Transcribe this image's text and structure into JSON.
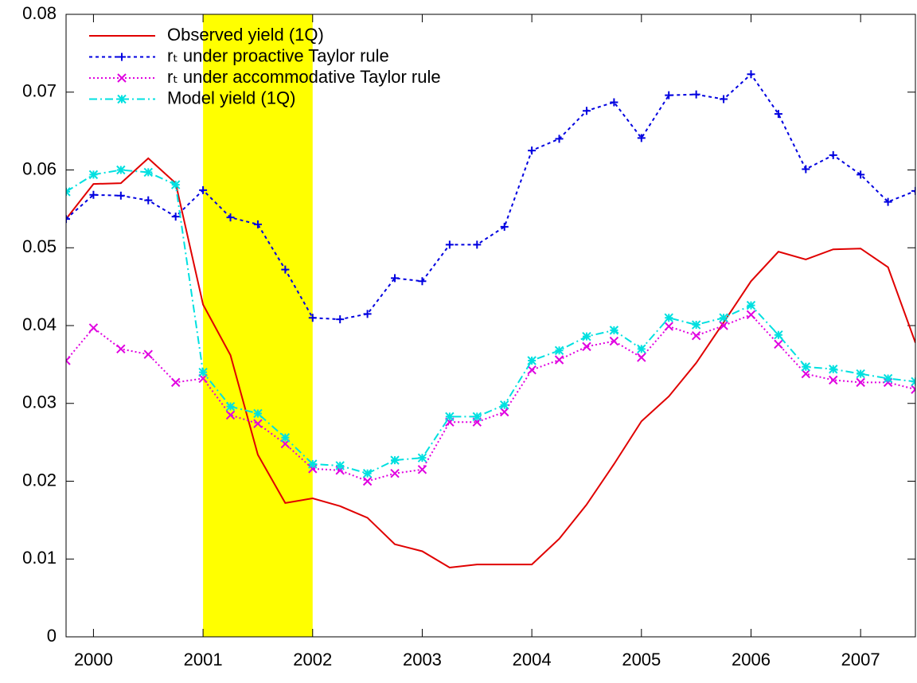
{
  "chart_data": {
    "type": "line",
    "x": [
      1999.75,
      2000,
      2000.25,
      2000.5,
      2000.75,
      2001,
      2001.25,
      2001.5,
      2001.75,
      2002,
      2002.25,
      2002.5,
      2002.75,
      2003,
      2003.25,
      2003.5,
      2003.75,
      2004,
      2004.25,
      2004.5,
      2004.75,
      2005,
      2005.25,
      2005.5,
      2005.75,
      2006,
      2006.25,
      2006.5,
      2006.75,
      2007,
      2007.25,
      2007.5
    ],
    "series": [
      {
        "name": "Observed yield (1Q)",
        "color": "#e00000",
        "dash": "none",
        "marker": "none",
        "values": [
          0.0537,
          0.0582,
          0.0583,
          0.0615,
          0.0583,
          0.0427,
          0.0362,
          0.0234,
          0.0172,
          0.0178,
          0.0168,
          0.0153,
          0.0119,
          0.011,
          0.0089,
          0.0093,
          0.0093,
          0.0093,
          0.0126,
          0.017,
          0.0222,
          0.0277,
          0.0309,
          0.0352,
          0.0404,
          0.0457,
          0.0495,
          0.0485,
          0.0498,
          0.0499,
          0.0475,
          0.0378
        ]
      },
      {
        "name": "rₜ under proactive Taylor rule",
        "color": "#0000e0",
        "dash": "4,4",
        "marker": "plus",
        "values": [
          0.0537,
          0.0568,
          0.0567,
          0.0561,
          0.054,
          0.0574,
          0.0539,
          0.053,
          0.0472,
          0.041,
          0.0408,
          0.0415,
          0.0461,
          0.0457,
          0.0504,
          0.0504,
          0.0527,
          0.0625,
          0.064,
          0.0676,
          0.0687,
          0.0641,
          0.0696,
          0.0697,
          0.0691,
          0.0723,
          0.0672,
          0.0601,
          0.0619,
          0.0594,
          0.0559,
          0.0573
        ]
      },
      {
        "name": "rₜ under accommodative Taylor rule",
        "color": "#e000e0",
        "dash": "2,3",
        "marker": "cross",
        "values": [
          0.0355,
          0.0397,
          0.037,
          0.0363,
          0.0327,
          0.0332,
          0.0285,
          0.0274,
          0.0248,
          0.0216,
          0.0214,
          0.02,
          0.021,
          0.0215,
          0.0276,
          0.0276,
          0.0289,
          0.0343,
          0.0356,
          0.0373,
          0.038,
          0.0359,
          0.0399,
          0.0387,
          0.04,
          0.0414,
          0.0376,
          0.0338,
          0.033,
          0.0327,
          0.0327,
          0.0318
        ]
      },
      {
        "name": "Model yield (1Q)",
        "color": "#00e0e0",
        "dash": "10,4,2,4",
        "marker": "star",
        "values": [
          0.0572,
          0.0594,
          0.06,
          0.0597,
          0.0581,
          0.034,
          0.0296,
          0.0287,
          0.0256,
          0.0222,
          0.022,
          0.021,
          0.0227,
          0.023,
          0.0283,
          0.0283,
          0.0298,
          0.0355,
          0.0368,
          0.0386,
          0.0394,
          0.037,
          0.041,
          0.0401,
          0.041,
          0.0426,
          0.0388,
          0.0347,
          0.0344,
          0.0338,
          0.0332,
          0.0328
        ]
      }
    ],
    "shade": {
      "x": [
        2001,
        2002
      ],
      "color": "#ffff00"
    },
    "xlim": [
      1999.75,
      2007.5
    ],
    "xticks": [
      2000,
      2001,
      2002,
      2003,
      2004,
      2005,
      2006,
      2007
    ],
    "ylim": [
      0,
      0.08
    ],
    "yticks": [
      0,
      0.01,
      0.02,
      0.03,
      0.04,
      0.05,
      0.06,
      0.07,
      0.08
    ],
    "legend": "top-left",
    "grid": false
  }
}
